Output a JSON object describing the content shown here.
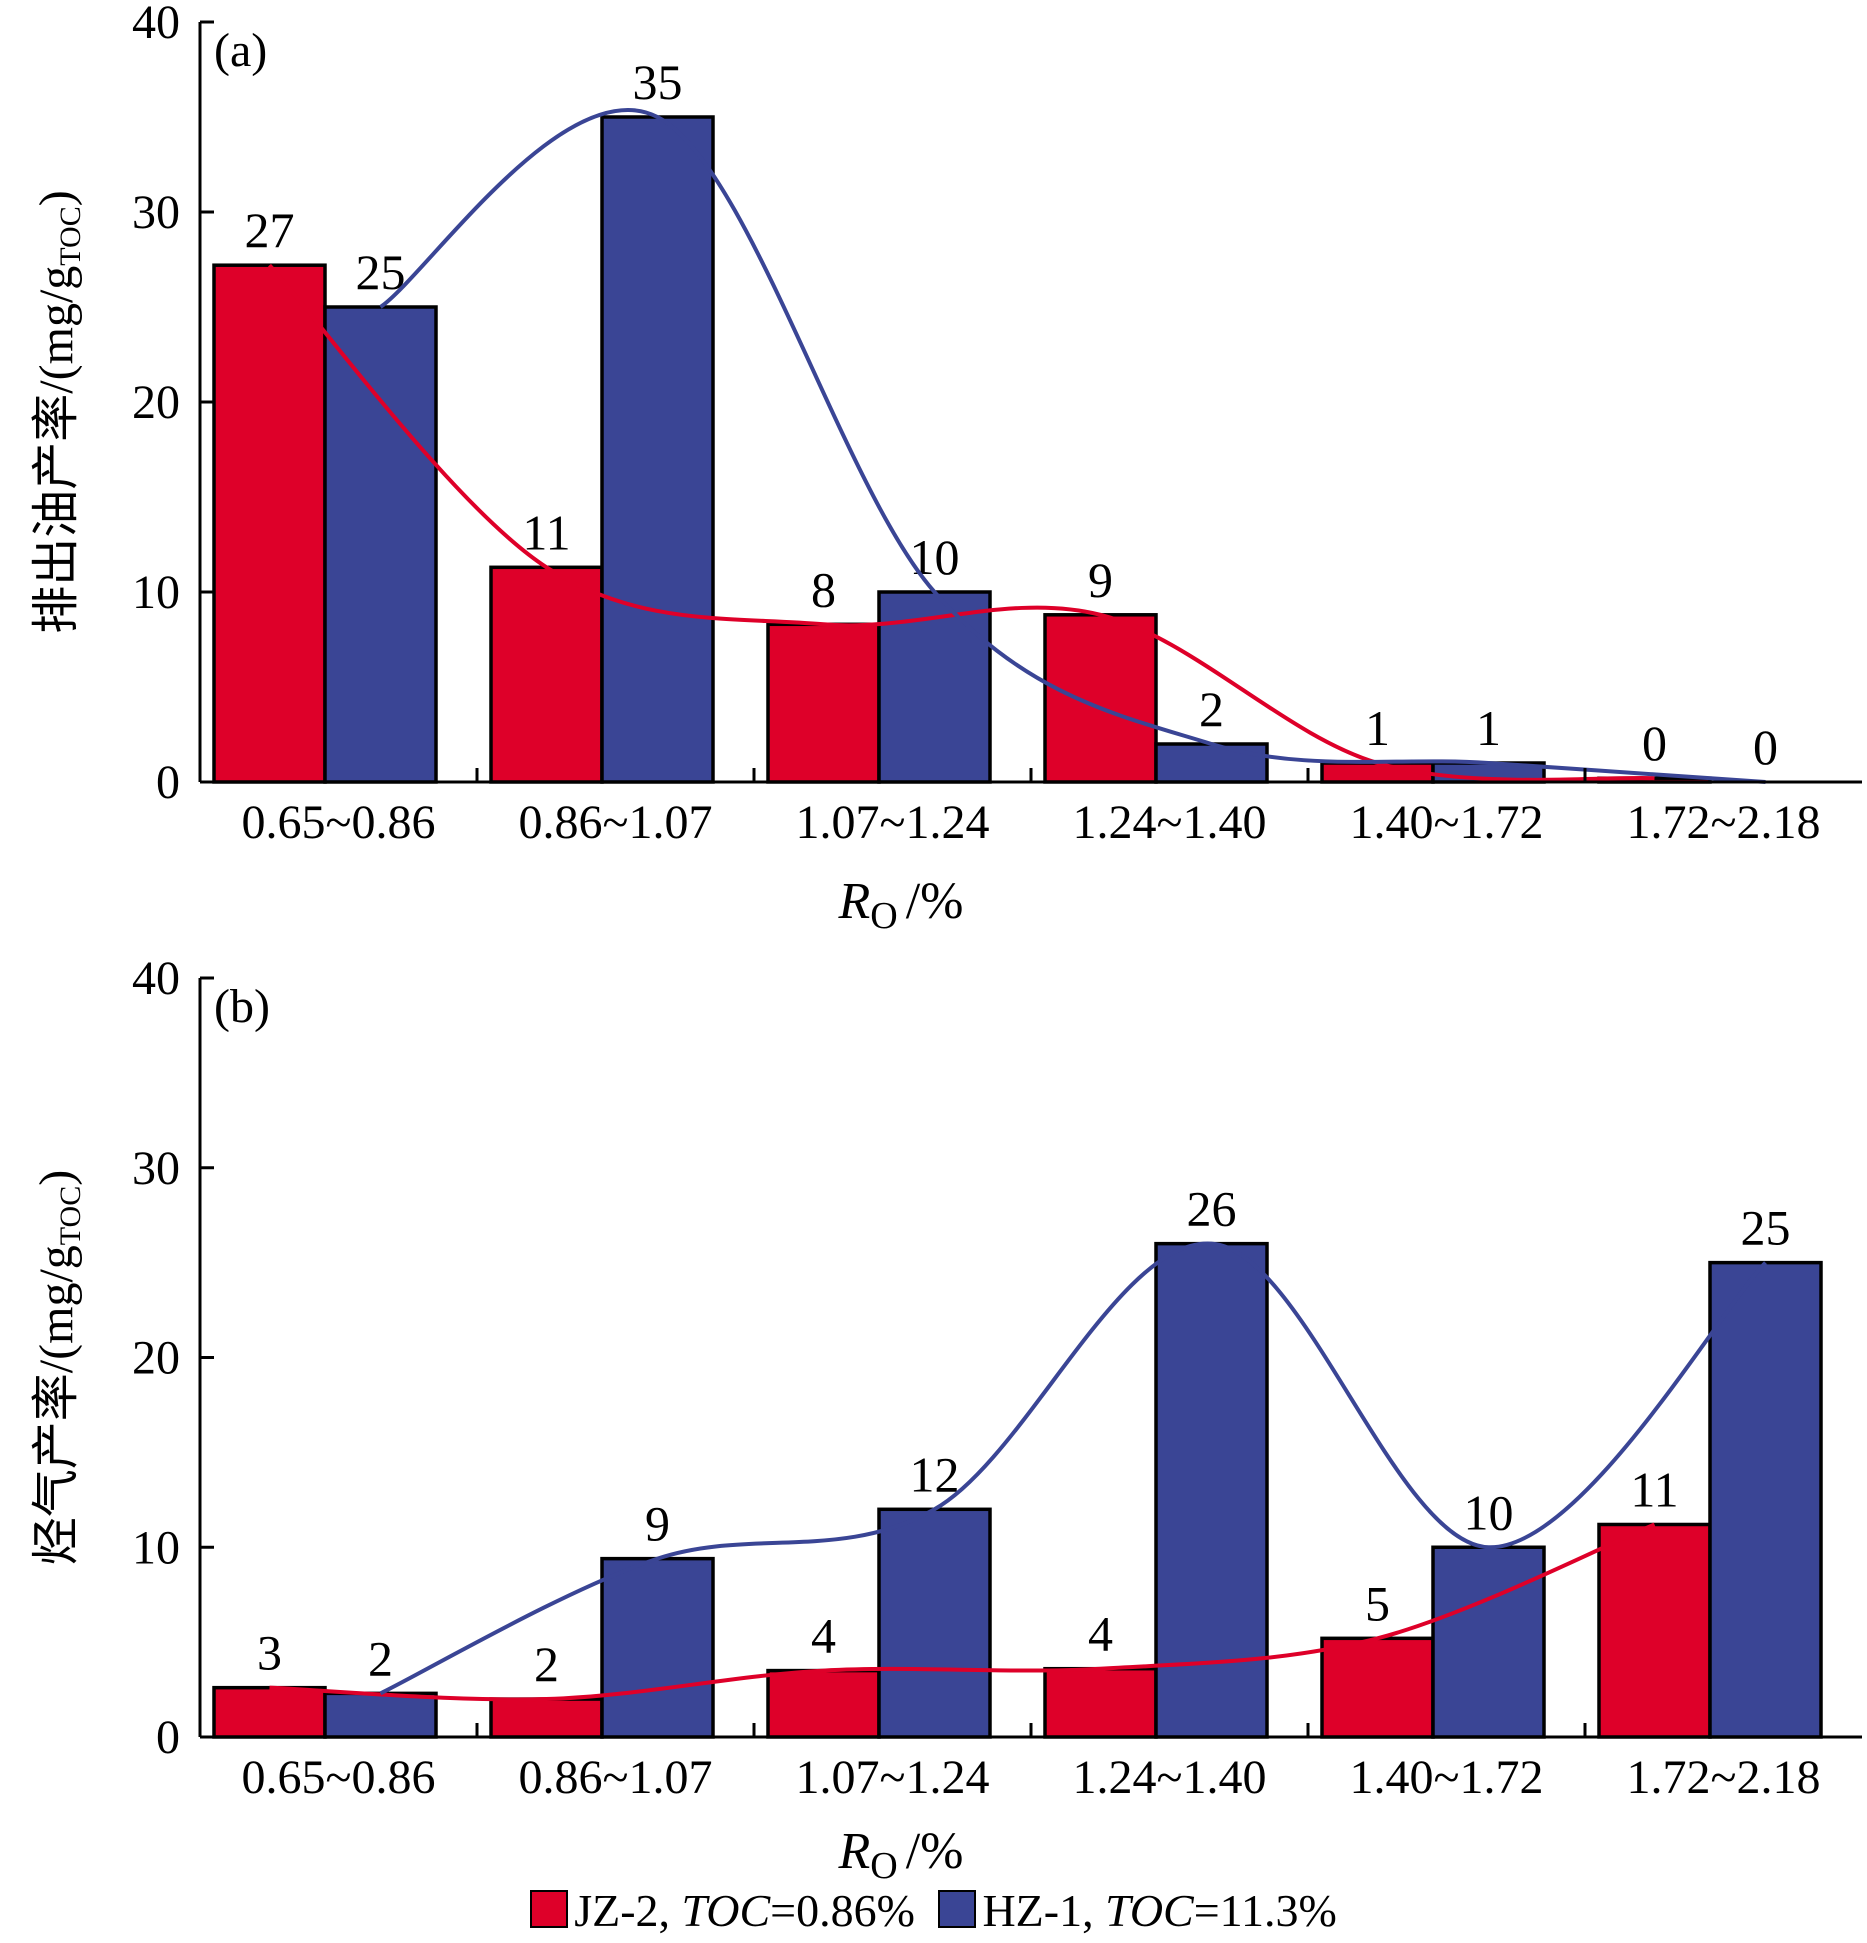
{
  "colors": {
    "jz2": "#de0029",
    "hz1": "#3a4595",
    "axis": "#000000"
  },
  "legend": {
    "jz2": {
      "name": "JZ-2,",
      "toc_label": "TOC",
      "toc_value": "=0.86%"
    },
    "hz1": {
      "name": "HZ-1,",
      "toc_label": "TOC",
      "toc_value": "=11.3%"
    }
  },
  "chart_data": [
    {
      "type": "bar",
      "panel_label": "(a)",
      "ylabel": "排出油产率/(mg/gTOC)",
      "ylabel_main": "排出油产率/(mg/g",
      "ylabel_sub": "TOC",
      "ylabel_tail": ")",
      "xlabel_symbol": "R",
      "xlabel_sub": "O",
      "xlabel_unit": "/%",
      "ylim": [
        0,
        40
      ],
      "yticks": [
        "0",
        "10",
        "20",
        "30",
        "40"
      ],
      "categories": [
        "0.65~0.86",
        "0.86~1.07",
        "1.07~1.24",
        "1.24~1.40",
        "1.40~1.72",
        "1.72~2.18"
      ],
      "series": [
        {
          "name": "JZ-2",
          "values": [
            27.2,
            11.3,
            8.3,
            8.8,
            1.0,
            0.2
          ],
          "labels": [
            "27",
            "11",
            "8",
            "9",
            "1",
            "0"
          ],
          "curve": true
        },
        {
          "name": "HZ-1",
          "values": [
            25.0,
            35.0,
            10.0,
            2.0,
            1.0,
            0.0
          ],
          "labels": [
            "25",
            "35",
            "10",
            "2",
            "1",
            "0"
          ],
          "curve": true
        }
      ]
    },
    {
      "type": "bar",
      "panel_label": "(b)",
      "ylabel": "烃气产率/(mg/gTOC)",
      "ylabel_main": "烃气产率/(mg/g",
      "ylabel_sub": "TOC",
      "ylabel_tail": ")",
      "xlabel_symbol": "R",
      "xlabel_sub": "O",
      "xlabel_unit": "/%",
      "ylim": [
        0,
        40
      ],
      "yticks": [
        "0",
        "10",
        "20",
        "30",
        "40"
      ],
      "categories": [
        "0.65~0.86",
        "0.86~1.07",
        "1.07~1.24",
        "1.24~1.40",
        "1.40~1.72",
        "1.72~2.18"
      ],
      "series": [
        {
          "name": "JZ-2",
          "values": [
            2.6,
            2.0,
            3.5,
            3.6,
            5.2,
            11.2
          ],
          "labels": [
            "3",
            "2",
            "4",
            "4",
            "5",
            "11"
          ],
          "curve": true
        },
        {
          "name": "HZ-1",
          "values": [
            2.3,
            9.4,
            12.0,
            26.0,
            10.0,
            25.0
          ],
          "labels": [
            "2",
            "9",
            "12",
            "26",
            "10",
            "25"
          ],
          "curve": true
        }
      ]
    }
  ]
}
